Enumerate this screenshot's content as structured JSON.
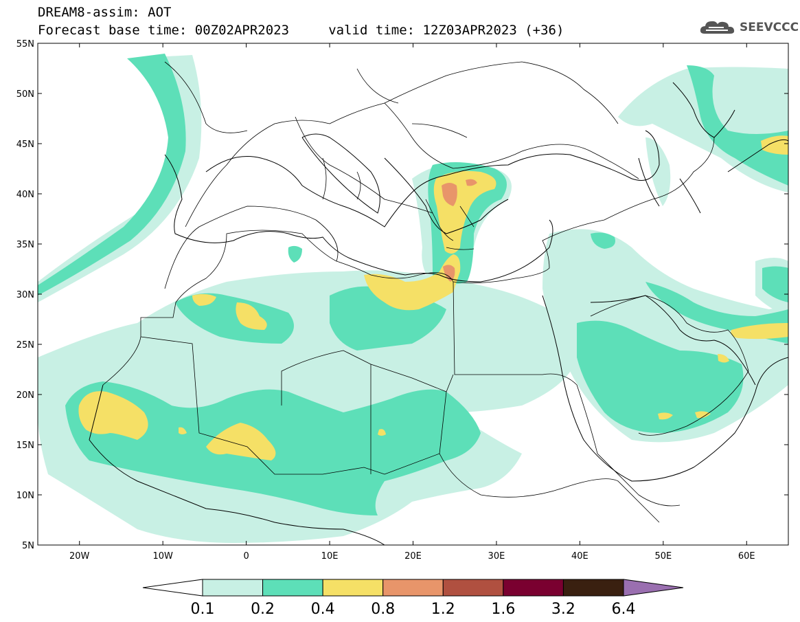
{
  "title": {
    "line1": "DREAM8-assim: AOT",
    "line2": "Forecast base time: 00Z02APR2023     valid time: 12Z03APR2023 (+36)"
  },
  "logo": {
    "text": "SEEVCCC",
    "icon": "cloud-icon"
  },
  "map": {
    "projection": "lat-lon",
    "lon_range": [
      -25,
      65
    ],
    "lat_range": [
      5,
      55
    ],
    "lon_ticks": [
      {
        "v": -20,
        "label": "20W"
      },
      {
        "v": -10,
        "label": "10W"
      },
      {
        "v": 0,
        "label": "0"
      },
      {
        "v": 10,
        "label": "10E"
      },
      {
        "v": 20,
        "label": "20E"
      },
      {
        "v": 30,
        "label": "30E"
      },
      {
        "v": 40,
        "label": "40E"
      },
      {
        "v": 50,
        "label": "50E"
      },
      {
        "v": 60,
        "label": "60E"
      }
    ],
    "lat_ticks": [
      {
        "v": 55,
        "label": "55N"
      },
      {
        "v": 50,
        "label": "50N"
      },
      {
        "v": 45,
        "label": "45N"
      },
      {
        "v": 40,
        "label": "40N"
      },
      {
        "v": 35,
        "label": "35N"
      },
      {
        "v": 30,
        "label": "30N"
      },
      {
        "v": 25,
        "label": "25N"
      },
      {
        "v": 20,
        "label": "20N"
      },
      {
        "v": 15,
        "label": "15N"
      },
      {
        "v": 10,
        "label": "10N"
      },
      {
        "v": 5,
        "label": "5N"
      }
    ]
  },
  "colorbar": {
    "labels": [
      "0.1",
      "0.2",
      "0.4",
      "0.8",
      "1.2",
      "1.6",
      "3.2",
      "6.4"
    ],
    "colors": [
      "#c8f0e4",
      "#5ddfb8",
      "#f5e066",
      "#e8956a",
      "#b05040",
      "#7a0030",
      "#3a2010"
    ],
    "under_color": "#ffffff",
    "over_color": "#9a6fb0"
  },
  "colors": {
    "aot_0_1": "#c8f0e4",
    "aot_0_2": "#5ddfb8",
    "aot_0_4": "#f5e066",
    "aot_0_8": "#e8956a",
    "aot_1_2": "#b05040"
  }
}
